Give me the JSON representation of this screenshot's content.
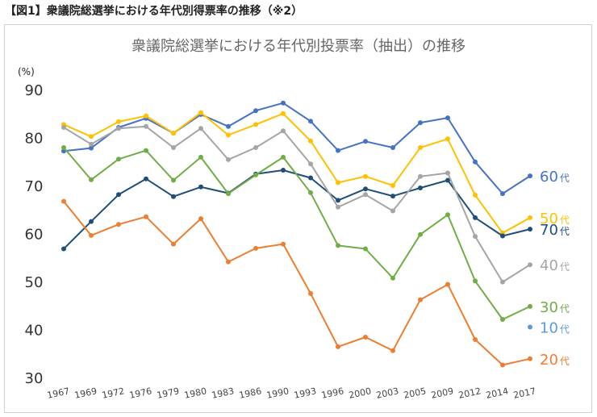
{
  "figure_label": "【図1】衆議院総選挙における年代別得票率の推移（※2）",
  "chart_data": {
    "type": "line",
    "title": "衆議院総選挙における年代別投票率（抽出）の推移",
    "yunit": "(%)",
    "ylim": [
      30,
      90
    ],
    "yticks": [
      30,
      40,
      50,
      60,
      70,
      80,
      90
    ],
    "grid": false,
    "legend_placement": "right, at line ends",
    "categories": [
      "1967",
      "1969",
      "1972",
      "1976",
      "1979",
      "1980",
      "1983",
      "1986",
      "1990",
      "1993",
      "1996",
      "2000",
      "2003",
      "2005",
      "2009",
      "2012",
      "2014",
      "2017"
    ],
    "series": [
      {
        "name": "60代",
        "label_num": "60",
        "label_suffix": "代",
        "color": "#4472C4",
        "values": [
          77.2,
          77.8,
          82.1,
          84.0,
          80.9,
          84.8,
          82.3,
          85.6,
          87.2,
          83.4,
          77.3,
          79.2,
          77.9,
          83.1,
          84.1,
          74.9,
          68.3,
          72.0
        ]
      },
      {
        "name": "50代",
        "label_num": "50",
        "label_suffix": "代",
        "color": "#FFC000",
        "values": [
          82.7,
          80.2,
          83.3,
          84.5,
          80.9,
          85.2,
          80.5,
          82.7,
          85.0,
          79.3,
          70.6,
          71.9,
          70.0,
          77.9,
          79.7,
          68.0,
          60.1,
          63.3
        ]
      },
      {
        "name": "70代",
        "label_num": "70",
        "label_suffix": "代",
        "color": "#1F4E79",
        "values": [
          56.8,
          62.5,
          68.1,
          71.4,
          67.7,
          69.7,
          68.4,
          72.4,
          73.2,
          71.6,
          66.9,
          69.3,
          67.8,
          69.5,
          71.1,
          63.3,
          59.5,
          60.9
        ]
      },
      {
        "name": "40代",
        "label_num": "40",
        "label_suffix": "代",
        "color": "#A5A5A5",
        "values": [
          82.1,
          78.6,
          81.9,
          82.3,
          77.9,
          81.9,
          75.4,
          77.9,
          81.4,
          74.5,
          65.5,
          68.1,
          64.7,
          71.9,
          72.6,
          59.4,
          49.9,
          53.5
        ]
      },
      {
        "name": "30代",
        "label_num": "30",
        "label_suffix": "代",
        "color": "#70AD47",
        "values": [
          77.9,
          71.2,
          75.5,
          77.3,
          71.1,
          75.9,
          68.3,
          72.2,
          75.9,
          68.5,
          57.5,
          56.8,
          50.7,
          59.8,
          63.9,
          50.1,
          42.1,
          44.8
        ]
      },
      {
        "name": "20代",
        "label_num": "20",
        "label_suffix": "代",
        "color": "#ED7D31",
        "values": [
          66.7,
          59.6,
          61.9,
          63.5,
          57.8,
          63.1,
          54.1,
          56.9,
          57.8,
          47.5,
          36.4,
          38.4,
          35.6,
          46.2,
          49.4,
          37.9,
          32.6,
          33.9
        ]
      },
      {
        "name": "10代",
        "label_num": "10",
        "label_suffix": "代",
        "color": "#5B9BD5",
        "values": [
          null,
          null,
          null,
          null,
          null,
          null,
          null,
          null,
          null,
          null,
          null,
          null,
          null,
          null,
          null,
          null,
          null,
          40.5
        ]
      }
    ]
  }
}
